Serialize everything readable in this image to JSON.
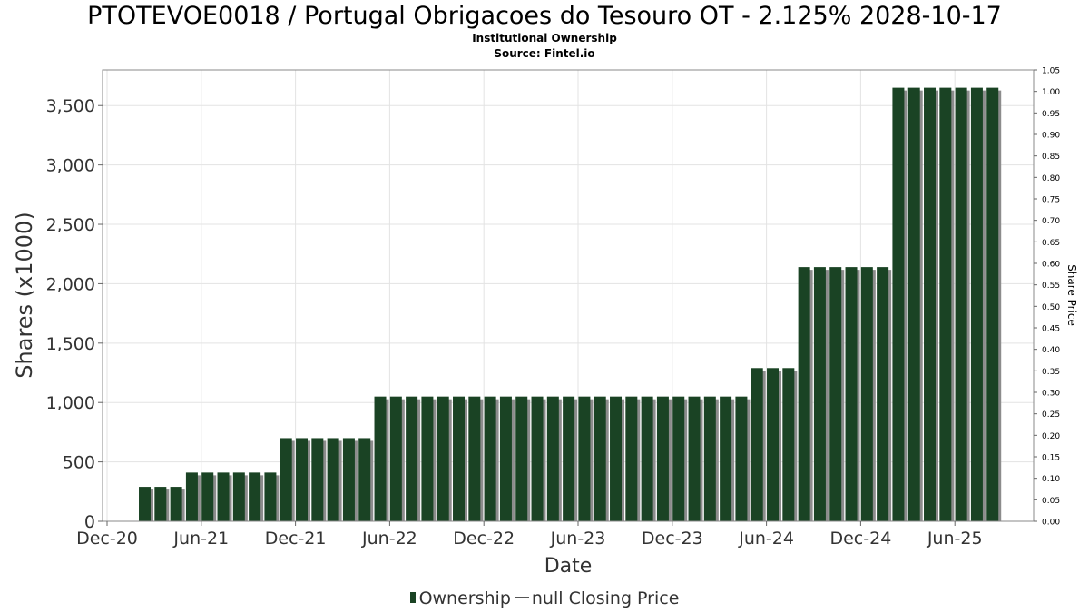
{
  "chart_data": {
    "type": "bar",
    "title": "PTOTEVOE0018 / Portugal Obrigacoes do Tesouro OT - 2.125% 2028-10-17",
    "subtitle": "Institutional Ownership",
    "source": "Source: Fintel.io",
    "xlabel": "Date",
    "ylabel": "Shares (x1000)",
    "y2label": "Share Price",
    "ylim": [
      0,
      3800
    ],
    "y2lim": [
      0,
      1.05
    ],
    "yticks": [
      "0",
      "500",
      "1,000",
      "1,500",
      "2,000",
      "2,500",
      "3,000",
      "3,500"
    ],
    "ytick_values": [
      0,
      500,
      1000,
      1500,
      2000,
      2500,
      3000,
      3500
    ],
    "y2ticks": [
      "0.00",
      "0.05",
      "0.10",
      "0.15",
      "0.20",
      "0.25",
      "0.30",
      "0.35",
      "0.40",
      "0.45",
      "0.50",
      "0.55",
      "0.60",
      "0.65",
      "0.70",
      "0.75",
      "0.80",
      "0.85",
      "0.90",
      "0.95",
      "1.00",
      "1.05"
    ],
    "xticks": [
      "Dec-20",
      "Jun-21",
      "Dec-21",
      "Jun-22",
      "Dec-22",
      "Jun-23",
      "Dec-23",
      "Jun-24",
      "Dec-24",
      "Jun-25"
    ],
    "xtick_months": [
      0,
      6,
      12,
      18,
      24,
      30,
      36,
      42,
      48,
      54
    ],
    "x_month_range": [
      0,
      58.8
    ],
    "bar_months": [
      2.4,
      3.4,
      4.4,
      5.4,
      6.4,
      7.4,
      8.4,
      9.4,
      10.4,
      11.4,
      12.4,
      13.4,
      14.4,
      15.4,
      16.4,
      17.4,
      18.4,
      19.4,
      20.4,
      21.4,
      22.4,
      23.4,
      24.4,
      25.4,
      26.4,
      27.4,
      28.4,
      29.4,
      30.4,
      31.4,
      32.4,
      33.4,
      34.4,
      35.4,
      36.4,
      37.4,
      38.4,
      39.4,
      40.4,
      41.4,
      42.4,
      43.4,
      44.4,
      45.4,
      46.4,
      47.4,
      48.4,
      49.4,
      50.4,
      51.4,
      52.4,
      53.4,
      54.4,
      55.4,
      56.4
    ],
    "series": [
      {
        "name": "Ownership",
        "color": "#1a4324",
        "values": [
          290,
          290,
          290,
          410,
          410,
          410,
          410,
          410,
          410,
          700,
          700,
          700,
          700,
          700,
          700,
          1050,
          1050,
          1050,
          1050,
          1050,
          1050,
          1050,
          1050,
          1050,
          1050,
          1050,
          1050,
          1050,
          1050,
          1050,
          1050,
          1050,
          1050,
          1050,
          1050,
          1050,
          1050,
          1050,
          1050,
          1290,
          1290,
          1290,
          2140,
          2140,
          2140,
          2140,
          2140,
          2140,
          3650,
          3650,
          3650,
          3650,
          3650,
          3650,
          3650
        ]
      }
    ],
    "legend": [
      "Ownership",
      "null Closing Price"
    ]
  }
}
